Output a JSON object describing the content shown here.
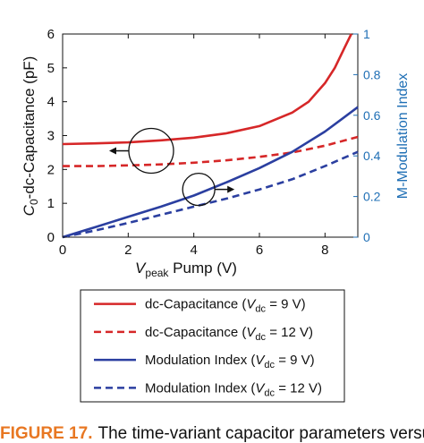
{
  "chart_data": {
    "type": "line",
    "xlabel": {
      "main": "V",
      "sub": "peak",
      "rest": " Pump (V)"
    },
    "ylabel": {
      "main": "C",
      "sub": "0",
      "rest": "-dc-Capacitance (pF)"
    },
    "y2label": "M-Modulation Index",
    "xlim": [
      0,
      9
    ],
    "ylim": [
      0,
      6
    ],
    "y2lim": [
      0,
      1
    ],
    "xticks": [
      "0",
      "2",
      "4",
      "6",
      "8"
    ],
    "yticks": [
      "0",
      "1",
      "2",
      "3",
      "4",
      "5",
      "6"
    ],
    "y2ticks": [
      "0",
      "0.2",
      "0.4",
      "0.6",
      "0.8",
      "1"
    ],
    "grid": false,
    "series": [
      {
        "name": "dc-Capacitance (Vdc = 9 V)",
        "axis": "left",
        "color": "#d62728",
        "dash": "solid",
        "x": [
          0,
          1,
          2,
          3,
          4,
          5,
          6,
          7,
          7.5,
          8,
          8.3,
          8.6,
          8.8
        ],
        "y": [
          2.75,
          2.77,
          2.8,
          2.86,
          2.94,
          3.07,
          3.28,
          3.68,
          4.0,
          4.55,
          5.0,
          5.6,
          6.0
        ]
      },
      {
        "name": "dc-Capacitance (Vdc = 12 V)",
        "axis": "left",
        "color": "#d62728",
        "dash": "dashed",
        "x": [
          0,
          1,
          2,
          3,
          4,
          5,
          6,
          7,
          8,
          9
        ],
        "y": [
          2.1,
          2.1,
          2.12,
          2.15,
          2.2,
          2.27,
          2.37,
          2.5,
          2.7,
          2.96
        ]
      },
      {
        "name": "Modulation Index (Vdc = 9 V)",
        "axis": "right",
        "color": "#2b3fa0",
        "dash": "solid",
        "x": [
          0,
          1,
          2,
          3,
          4,
          5,
          6,
          7,
          8,
          9
        ],
        "y": [
          0,
          0.05,
          0.1,
          0.15,
          0.205,
          0.27,
          0.34,
          0.42,
          0.52,
          0.64
        ]
      },
      {
        "name": "Modulation Index (Vdc = 12 V)",
        "axis": "right",
        "color": "#2b3fa0",
        "dash": "dashed",
        "x": [
          0,
          1,
          2,
          3,
          4,
          5,
          6,
          7,
          8,
          9
        ],
        "y": [
          0,
          0.033,
          0.07,
          0.11,
          0.15,
          0.19,
          0.235,
          0.285,
          0.35,
          0.42
        ]
      }
    ],
    "legend": {
      "placement": "below",
      "entries": [
        {
          "label": "dc-Capacitance (",
          "var": "V",
          "sub": "dc",
          "rest": " = 9 V)",
          "color": "#d62728",
          "dash": "solid"
        },
        {
          "label": "dc-Capacitance (",
          "var": "V",
          "sub": "dc",
          "rest": " = 12 V)",
          "color": "#d62728",
          "dash": "dashed"
        },
        {
          "label": "Modulation Index (",
          "var": "V",
          "sub": "dc",
          "rest": " = 9 V)",
          "color": "#2b3fa0",
          "dash": "solid"
        },
        {
          "label": "Modulation Index (",
          "var": "V",
          "sub": "dc",
          "rest": " = 12 V)",
          "color": "#2b3fa0",
          "dash": "dashed"
        }
      ]
    },
    "annotations": [
      {
        "shape": "circle",
        "cx": 2.7,
        "cy": 2.55,
        "axis": "left",
        "arrow": "left"
      },
      {
        "shape": "circle",
        "cx": 4.15,
        "cy": 0.235,
        "axis": "right",
        "arrow": "right"
      }
    ]
  },
  "caption": {
    "label": "FIGURE 17.",
    "text": "The time-variant capacitor parameters versus the"
  },
  "colors": {
    "left_axis": "#111111",
    "right_axis": "#1f6fb5",
    "caption_label": "#e87722"
  }
}
